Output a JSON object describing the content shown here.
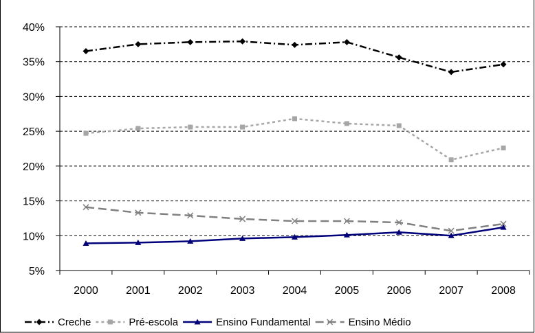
{
  "chart_data": {
    "type": "line",
    "title": "",
    "xlabel": "",
    "ylabel": "",
    "categories": [
      "2000",
      "2001",
      "2002",
      "2003",
      "2004",
      "2005",
      "2006",
      "2007",
      "2008"
    ],
    "ylim": [
      5,
      40
    ],
    "yticks": [
      "5%",
      "10%",
      "15%",
      "20%",
      "25%",
      "30%",
      "35%",
      "40%"
    ],
    "grid": "horizontal-dashed",
    "legend_position": "bottom",
    "series": [
      {
        "name": "Creche",
        "values": [
          36.5,
          37.5,
          37.8,
          37.9,
          37.4,
          37.8,
          35.6,
          33.5,
          34.6
        ],
        "color": "#000000",
        "line": "dash-dot",
        "marker": "diamond"
      },
      {
        "name": "Pré-escola",
        "values": [
          24.7,
          25.4,
          25.6,
          25.6,
          26.8,
          26.1,
          25.8,
          20.9,
          22.6
        ],
        "color": "#a6a6a6",
        "line": "dotted",
        "marker": "square"
      },
      {
        "name": "Ensino Fundamental",
        "values": [
          8.9,
          9.0,
          9.2,
          9.6,
          9.8,
          10.1,
          10.5,
          10.0,
          11.2
        ],
        "color": "#00007a",
        "line": "solid",
        "marker": "triangle"
      },
      {
        "name": "Ensino Médio",
        "values": [
          14.1,
          13.3,
          12.9,
          12.4,
          12.1,
          12.1,
          11.9,
          10.7,
          11.7
        ],
        "color": "#808080",
        "line": "dashed",
        "marker": "x"
      }
    ]
  }
}
